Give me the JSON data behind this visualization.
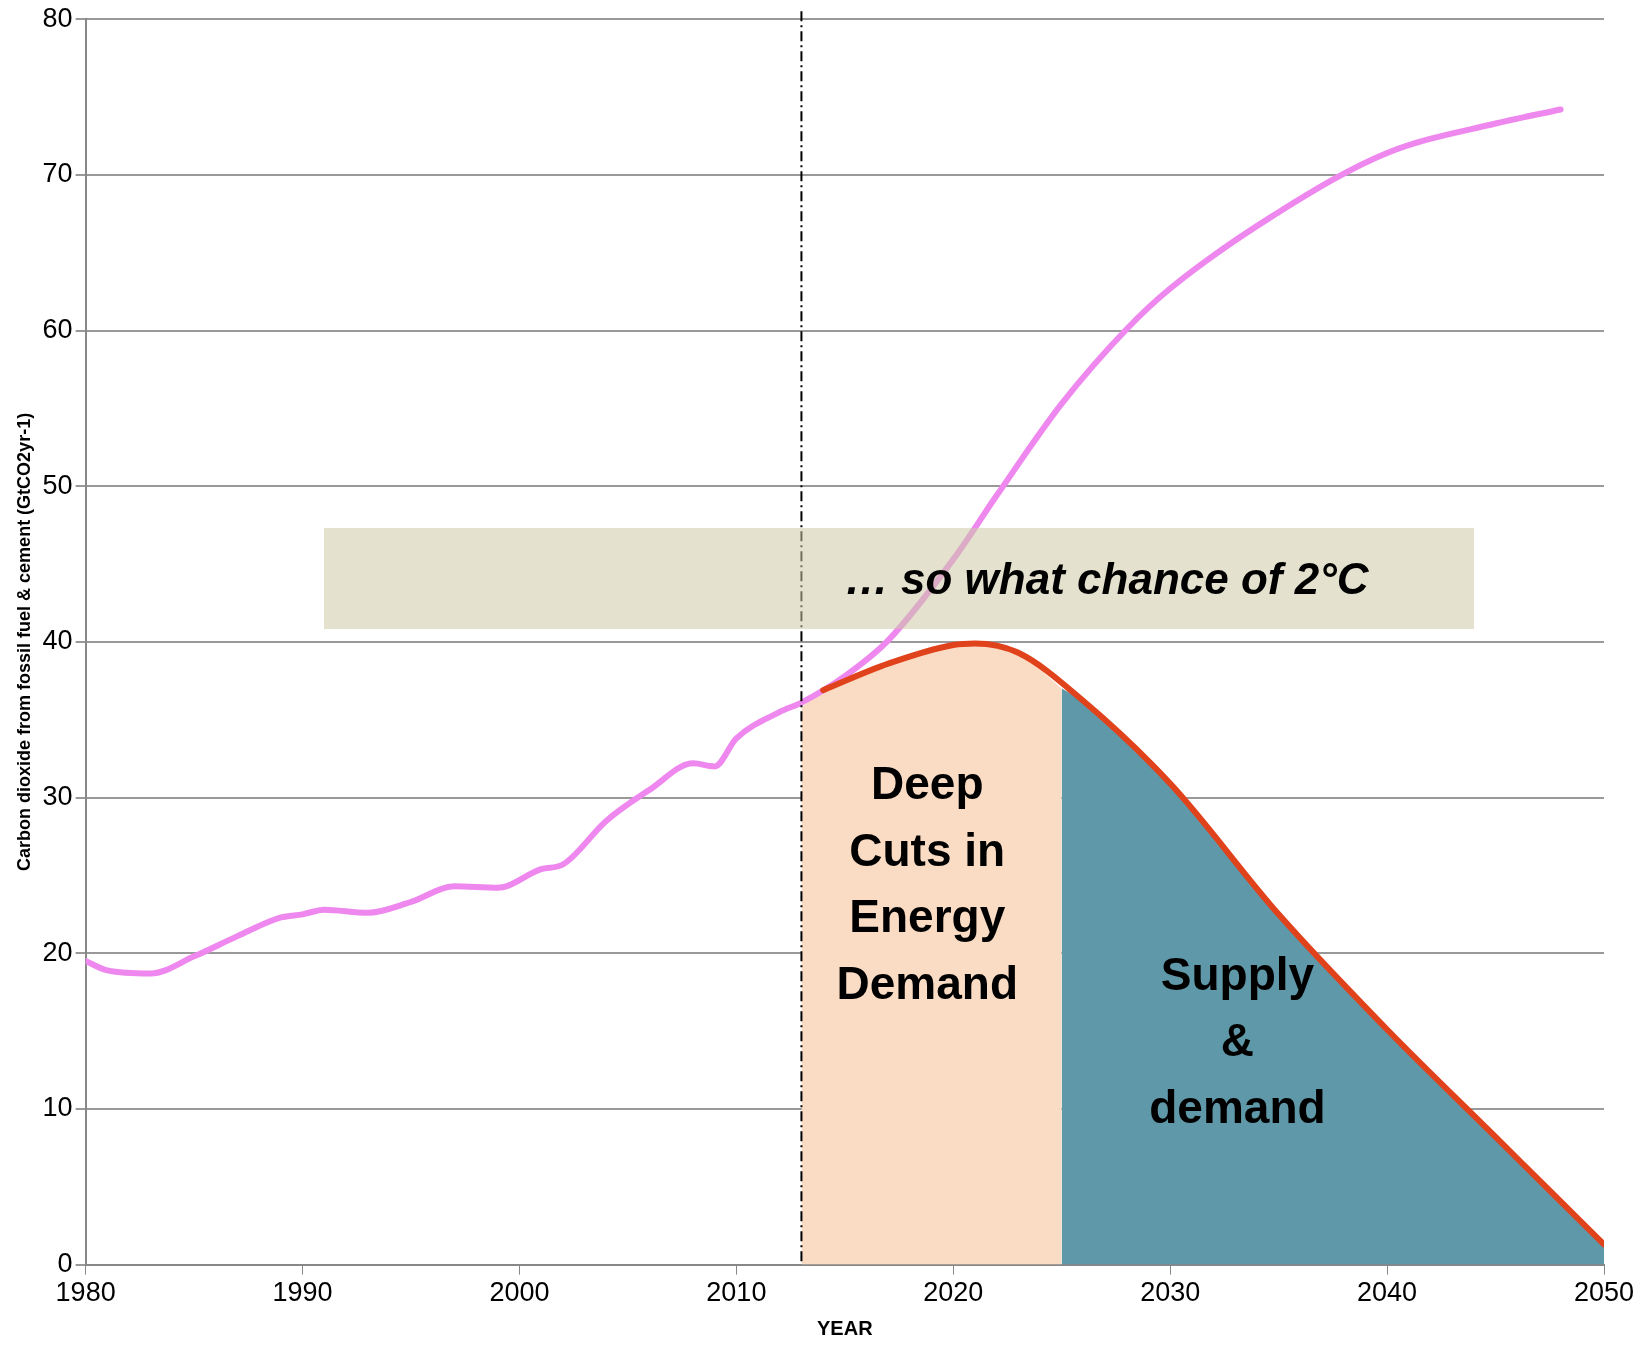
{
  "chart_data": {
    "type": "line",
    "xlabel": "YEAR",
    "ylabel": "Carbon dioxide from fossil fuel & cement (GtCO2yr-1)",
    "xlim": [
      1980,
      2050
    ],
    "xticks": [
      1980,
      1990,
      2000,
      2010,
      2020,
      2030,
      2040,
      2050
    ],
    "ylim": [
      0,
      80
    ],
    "yticks": [
      0,
      10,
      20,
      30,
      40,
      50,
      60,
      70,
      80
    ],
    "grid": "y",
    "legend": false,
    "marker": "none",
    "series": [
      {
        "type": "area",
        "color": "#fadbc4",
        "x": [
          2013,
          2014,
          2017,
          2020,
          2021,
          2023,
          2025
        ],
        "values": [
          35.8,
          36.9,
          38.6,
          39.8,
          39.9,
          39.3,
          37.0
        ]
      },
      {
        "type": "area",
        "color": "#5f98a8",
        "x": [
          2025,
          2026,
          2030,
          2035,
          2040,
          2045,
          2050
        ],
        "values": [
          37.0,
          36.2,
          30.9,
          22.5,
          15.1,
          8.2,
          1.3
        ]
      },
      {
        "type": "line",
        "color": "#e8e",
        "x": [
          1980,
          1981,
          1983,
          1985,
          1987,
          1989,
          1990,
          1991,
          1993,
          1995,
          1997,
          1999,
          2001,
          2002,
          2004,
          2006,
          2008,
          2009,
          2010,
          2012,
          2013,
          2015,
          2017,
          2020,
          2022,
          2025,
          2028,
          2030,
          2035,
          2040,
          2045,
          2048
        ],
        "values": [
          19.5,
          18.9,
          18.7,
          19.8,
          21.1,
          22.3,
          22.5,
          22.8,
          22.6,
          23.3,
          24.3,
          24.2,
          25.4,
          25.7,
          28.5,
          30.5,
          32.2,
          32.0,
          33.8,
          35.5,
          36.1,
          37.8,
          40.1,
          45.3,
          49.4,
          55.3,
          60.1,
          62.7,
          67.6,
          71.4,
          73.3,
          74.2
        ]
      },
      {
        "type": "line",
        "color": "#e0421c",
        "x": [
          2014,
          2017,
          2020,
          2021,
          2023,
          2026,
          2030,
          2035,
          2040,
          2045,
          2050
        ],
        "values": [
          36.9,
          38.6,
          39.8,
          39.9,
          39.3,
          36.2,
          30.9,
          22.5,
          15.1,
          8.2,
          1.3
        ]
      }
    ],
    "ref_lines": [
      {
        "axis": "x",
        "value": 2013,
        "color": "#000000",
        "line_style": "dashdot"
      }
    ],
    "annotations": [
      "… so what chance of 2°C",
      "Deep Cuts in Energy Demand",
      "Supply & demand"
    ]
  }
}
